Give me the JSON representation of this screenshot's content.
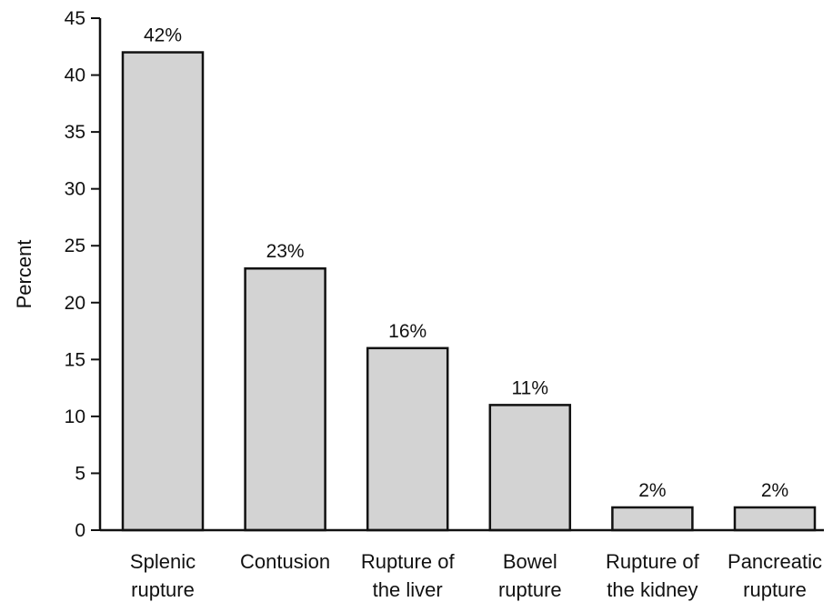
{
  "chart_data": {
    "type": "bar",
    "categories": [
      [
        "Splenic",
        "rupture"
      ],
      [
        "Contusion"
      ],
      [
        "Rupture of",
        "the liver"
      ],
      [
        "Bowel",
        "rupture"
      ],
      [
        "Rupture of",
        "the kidney"
      ],
      [
        "Pancreatic",
        "rupture"
      ]
    ],
    "values": [
      42,
      23,
      16,
      11,
      2,
      2
    ],
    "data_labels": [
      "42%",
      "23%",
      "16%",
      "11%",
      "2%",
      "2%"
    ],
    "title": "",
    "xlabel": "",
    "ylabel": "Percent",
    "ylim": [
      0,
      45
    ],
    "yticks": [
      0,
      5,
      10,
      15,
      20,
      25,
      30,
      35,
      40,
      45
    ],
    "grid": false,
    "bar_color": "#d3d3d3",
    "edge_color": "#111111"
  }
}
